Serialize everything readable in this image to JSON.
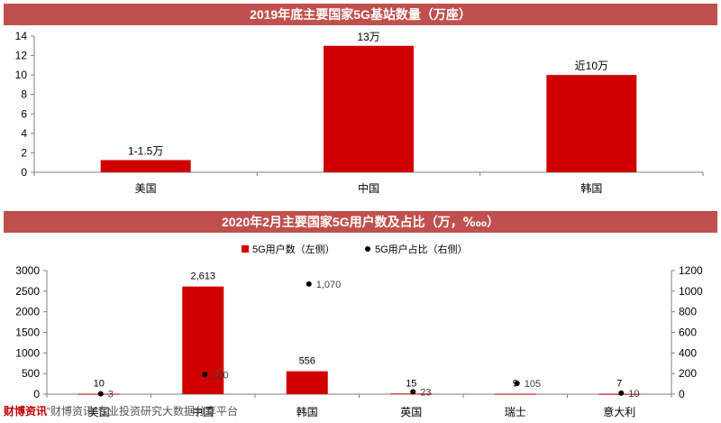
{
  "chart_data": [
    {
      "type": "bar",
      "title": "2019年底主要国家5G基站数量（万座）",
      "categories": [
        "美国",
        "中国",
        "韩国"
      ],
      "values": [
        1.25,
        13,
        10
      ],
      "data_labels": [
        "1-1.5万",
        "13万",
        "近10万"
      ],
      "ylim": [
        0,
        14
      ],
      "yticks": [
        0,
        2,
        4,
        6,
        8,
        10,
        12,
        14
      ],
      "xlabel": "",
      "ylabel": "",
      "bar_color": "#d00000"
    },
    {
      "type": "bar",
      "title": "2020年2月主要国家5G用户数及占比（万，‱）",
      "categories": [
        "美国",
        "中国",
        "韩国",
        "英国",
        "瑞士",
        "意大利"
      ],
      "series": [
        {
          "name": "5G用户数（左侧）",
          "kind": "bar",
          "axis": "left",
          "values": [
            10,
            2613,
            556,
            15,
            9,
            7
          ],
          "labels": [
            "10",
            "2,613",
            "556",
            "15",
            "9",
            "7"
          ],
          "color": "#d00000"
        },
        {
          "name": "5G用户占比（右侧）",
          "kind": "scatter",
          "axis": "right",
          "values": [
            3,
            190,
            1070,
            23,
            105,
            10
          ],
          "labels": [
            "3",
            "190",
            "1,070",
            "23",
            "105",
            "10"
          ],
          "color": "#000000"
        }
      ],
      "ylim_left": [
        0,
        3000
      ],
      "yticks_left": [
        0,
        500,
        1000,
        1500,
        2000,
        2500,
        3000
      ],
      "ylim_right": [
        0,
        1200
      ],
      "yticks_right": [
        0,
        200,
        400,
        600,
        800,
        1000,
        1200
      ],
      "legend_position": "top-center"
    }
  ],
  "watermark": {
    "brand": "财博资讯",
    "text": "“财博资讯”专业投资研究大数据分享平台"
  }
}
